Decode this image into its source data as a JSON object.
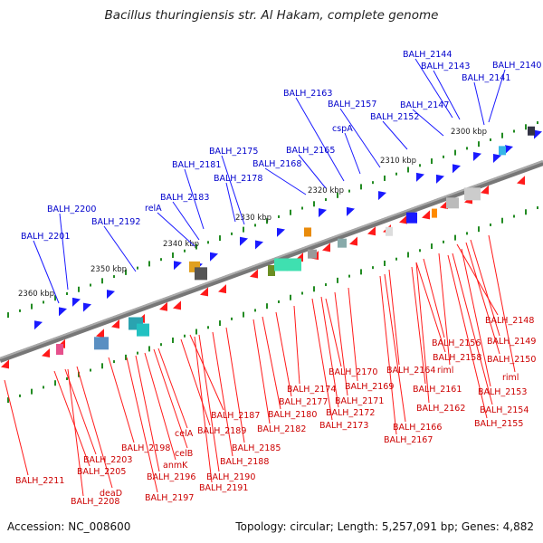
{
  "title": "Bacillus thuringiensis str. Al Hakam, complete genome",
  "accession_text": "Accession: NC_008600",
  "summary_text": "Topology: circular; Length: 5,257,091 bp; Genes: 4,882",
  "colors": {
    "forward_gene": "#1a1aff",
    "reverse_gene": "#ff1a1a",
    "forward_label": "#0000cc",
    "reverse_label": "#cc0000",
    "backbone": "#888888",
    "tick": "#228b22"
  },
  "kbp_ticks": [
    "2300 kbp",
    "2310 kbp",
    "2320 kbp",
    "2330 kbp",
    "2340 kbp",
    "2350 kbp",
    "2360 kbp"
  ],
  "forward_labels": [
    "BALH_2144",
    "BALH_2143",
    "BALH_2140",
    "BALH_2141",
    "BALH_2163",
    "BALH_2147",
    "BALH_2157",
    "BALH_2152",
    "cspA",
    "BALH_2175",
    "BALH_2165",
    "BALH_2181",
    "BALH_2168",
    "BALH_2178",
    "BALH_2183",
    "relA",
    "BALH_2200",
    "BALH_2192",
    "BALH_2201"
  ],
  "reverse_labels": [
    "BALH_2148",
    "BALH_2156",
    "BALH_2149",
    "BALH_2158",
    "BALH_2150",
    "riml",
    "BALH_2170",
    "BALH_2164",
    "riml",
    "BALH_2174",
    "BALH_2169",
    "BALH_2161",
    "BALH_2153",
    "BALH_2177",
    "BALH_2171",
    "BALH_2162",
    "BALH_2154",
    "BALH_2180",
    "BALH_2172",
    "BALH_2155",
    "BALH_2187",
    "BALH_2182",
    "BALH_2173",
    "BALH_2166",
    "BALH_2189",
    "BALH_2167",
    "celA",
    "BALH_2185",
    "BALH_2198",
    "celB",
    "BALH_2188",
    "BALH_2203",
    "anmK",
    "BALH_2205",
    "BALH_2196",
    "BALH_2190",
    "BALH_2211",
    "deaD",
    "BALH_2191",
    "BALH_2197",
    "BALH_2208"
  ]
}
